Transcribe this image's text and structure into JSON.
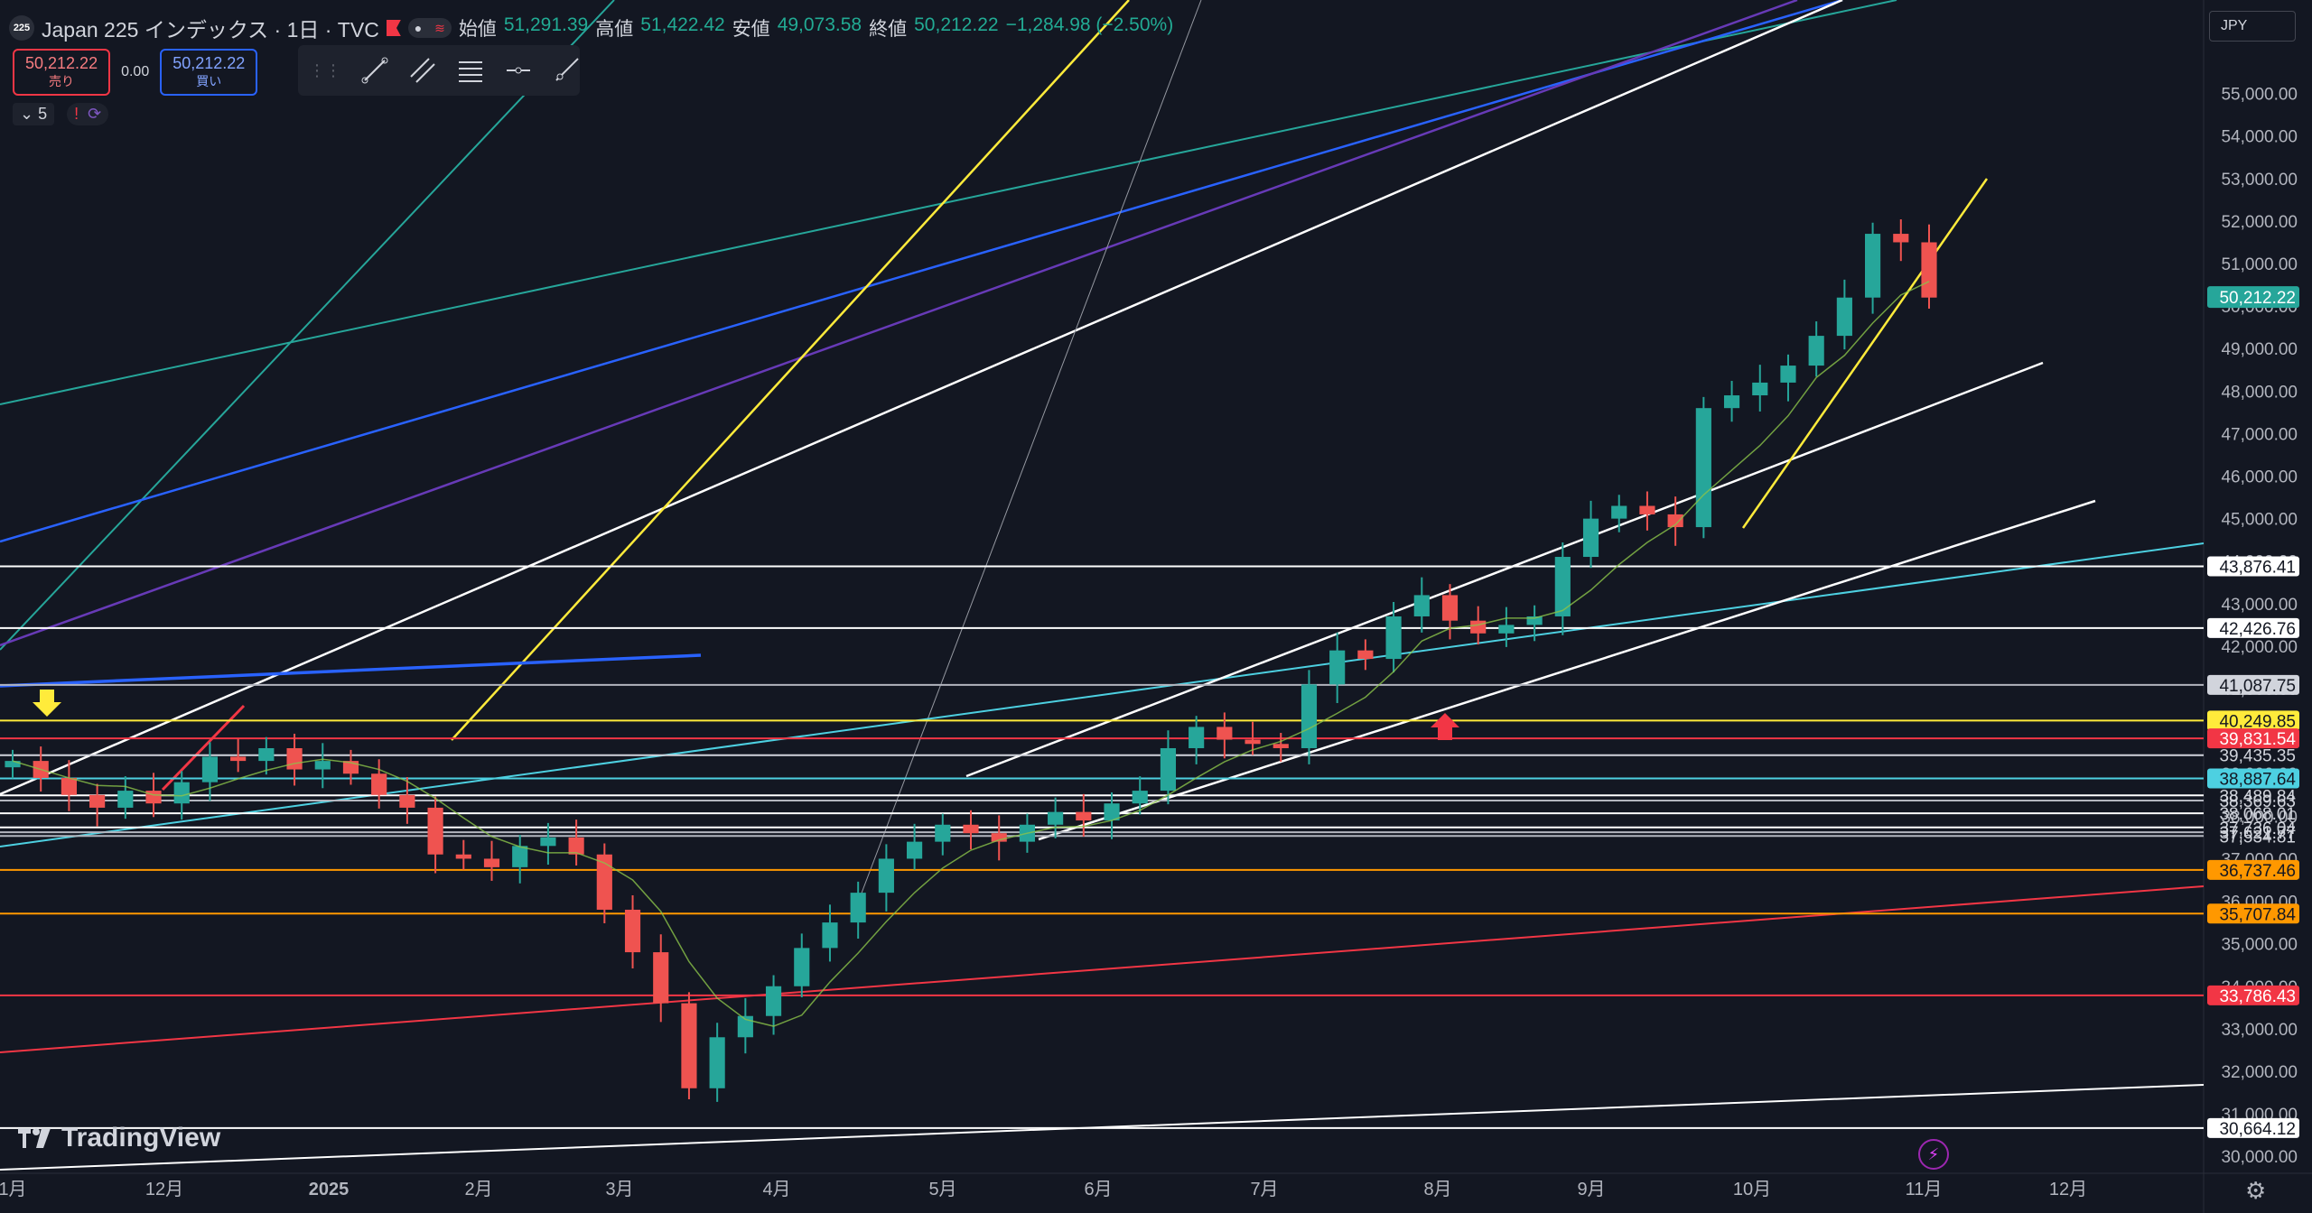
{
  "header": {
    "symbol_badge": "225",
    "title": "Japan 225 インデックス · 1日 · TVC",
    "ohlc": [
      {
        "key": "始値",
        "value": "51,291.39"
      },
      {
        "key": "高値",
        "value": "51,422.42"
      },
      {
        "key": "安値",
        "value": "49,073.58"
      },
      {
        "key": "終値",
        "value": "50,212.22"
      }
    ],
    "change": "−1,284.98 (−2.50%)"
  },
  "trade": {
    "sell_price": "50,212.22",
    "sell_label": "売り",
    "spread": "0.00",
    "buy_price": "50,212.22",
    "buy_label": "買い"
  },
  "indicators": {
    "count": "5"
  },
  "currency": "JPY",
  "logo_text": "TradingView",
  "colors": {
    "background": "#131722",
    "up": "#26a69a",
    "down": "#ef5350",
    "white_line": "#ffffff",
    "yellow_line": "#ffeb3b",
    "red_line": "#f23645",
    "cyan_line": "#4dd0e1",
    "orange_line": "#ff9800",
    "blue_line": "#2962ff",
    "purple_line": "#673ab7",
    "teal_line": "#26a69a",
    "ma_line": "#8bc34a"
  },
  "chart_data": {
    "type": "candlestick",
    "title": "Japan 225 インデックス · 1日 · TVC",
    "ylim": [
      29600,
      57200
    ],
    "y_ticks": [
      "30,000.00",
      "31,000.00",
      "32,000.00",
      "33,000.00",
      "34,000.00",
      "35,000.00",
      "36,000.00",
      "37,000.00",
      "38,000.00",
      "39,000.00",
      "40,000.00",
      "41,000.00",
      "42,000.00",
      "43,000.00",
      "44,000.00",
      "45,000.00",
      "46,000.00",
      "47,000.00",
      "48,000.00",
      "49,000.00",
      "50,000.00",
      "51,000.00",
      "52,000.00",
      "53,000.00",
      "54,000.00",
      "55,000.00"
    ],
    "x_ticks": [
      "1月",
      "12月",
      "2025",
      "2月",
      "3月",
      "4月",
      "5月",
      "6月",
      "7月",
      "8月",
      "9月",
      "10月",
      "11月",
      "12月"
    ],
    "close_series": [
      39300,
      38900,
      38500,
      38200,
      38600,
      38300,
      38800,
      39400,
      39300,
      39600,
      39100,
      39300,
      39000,
      38500,
      38200,
      37100,
      37000,
      36800,
      37300,
      37500,
      37100,
      35800,
      34800,
      33600,
      31600,
      32800,
      33300,
      34000,
      34900,
      35500,
      36200,
      37000,
      37400,
      37800,
      37600,
      37400,
      37800,
      38100,
      37900,
      38300,
      38600,
      39600,
      40100,
      39800,
      39700,
      39600,
      41100,
      41900,
      41700,
      42700,
      43200,
      42600,
      42300,
      42500,
      42700,
      44100,
      45000,
      45300,
      45100,
      44800,
      47600,
      47900,
      48200,
      48600,
      49300,
      50200,
      51700,
      51500,
      50200
    ],
    "last_price_label": "50,212.22",
    "horizontal_levels": [
      {
        "label": "43,876.41",
        "value": 43876.41,
        "color": "#ffffff"
      },
      {
        "label": "42,426.76",
        "value": 42426.76,
        "color": "#ffffff"
      },
      {
        "label": "41,087.75",
        "value": 41087.75,
        "color": "#b2b5be"
      },
      {
        "label": "40,249.85",
        "value": 40249.85,
        "color": "#ffeb3b"
      },
      {
        "label": "39,831.54",
        "value": 39831.54,
        "color": "#f23645"
      },
      {
        "label": "39,435.35",
        "value": 39435.35,
        "color": "#d1d4dc"
      },
      {
        "label": "38,887.64",
        "value": 38887.64,
        "color": "#4dd0e1"
      },
      {
        "label": "38,489.84",
        "value": 38489.84,
        "color": "#ffffff"
      },
      {
        "label": "38,369.63",
        "value": 38369.63,
        "color": "#b2b5be"
      },
      {
        "label": "38,068.01",
        "value": 38068.01,
        "color": "#ffffff"
      },
      {
        "label": "37,736.04",
        "value": 37736.04,
        "color": "#ffffff"
      },
      {
        "label": "37,621.77",
        "value": 37621.77,
        "color": "#b2b5be"
      },
      {
        "label": "37,534.81",
        "value": 37534.81,
        "color": "#b2b5be"
      },
      {
        "label": "36,737.46",
        "value": 36737.46,
        "color": "#ff9800"
      },
      {
        "label": "35,707.84",
        "value": 35707.84,
        "color": "#ff9800"
      },
      {
        "label": "33,786.43",
        "value": 33786.43,
        "color": "#f23645"
      },
      {
        "label": "30,664.12",
        "value": 30664.12,
        "color": "#ffffff"
      }
    ]
  }
}
